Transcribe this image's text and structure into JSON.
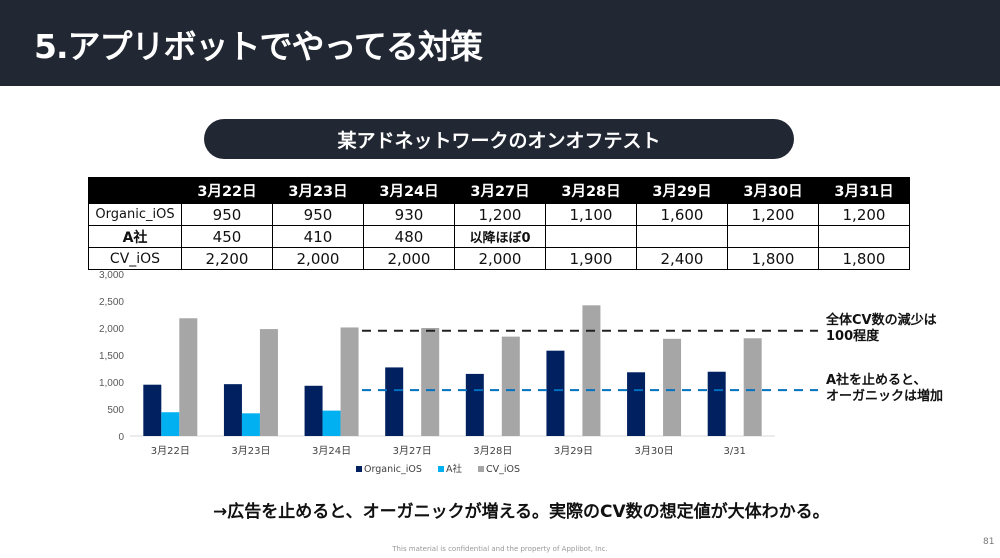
{
  "header": {
    "title": "5.アプリボットでやってる対策"
  },
  "section_pill": "某アドネットワークのオンオフテスト",
  "table": {
    "columns": [
      "",
      "3月22日",
      "3月23日",
      "3月24日",
      "3月27日",
      "3月28日",
      "3月29日",
      "3月30日",
      "3月31日"
    ],
    "rows": [
      {
        "label": "Organic_iOS",
        "cells": [
          "950",
          "950",
          "930",
          "1,200",
          "1,100",
          "1,600",
          "1,200",
          "1,200"
        ]
      },
      {
        "label": "A社",
        "cells": [
          "450",
          "410",
          "480",
          "以降ほぼ0",
          "",
          "",
          "",
          ""
        ]
      },
      {
        "label": "CV_iOS",
        "cells": [
          "2,200",
          "2,000",
          "2,000",
          "2,000",
          "1,900",
          "2,400",
          "1,800",
          "1,800"
        ]
      }
    ]
  },
  "chart_data": {
    "type": "bar",
    "categories": [
      "3月22日",
      "3月23日",
      "3月24日",
      "3月27日",
      "3月28日",
      "3月29日",
      "3月30日",
      "3/31"
    ],
    "series": [
      {
        "name": "Organic_iOS",
        "color": "#002060",
        "values": [
          950,
          960,
          930,
          1270,
          1150,
          1580,
          1180,
          1190
        ]
      },
      {
        "name": "A社",
        "color": "#00b0f0",
        "values": [
          440,
          420,
          470,
          null,
          null,
          null,
          null,
          null
        ]
      },
      {
        "name": "CV_iOS",
        "color": "#a6a6a6",
        "values": [
          2180,
          1980,
          2010,
          2000,
          1840,
          2420,
          1800,
          1810
        ]
      }
    ],
    "yticks": [
      "0",
      "500",
      "1,000",
      "1,500",
      "2,000",
      "2,500",
      "3,000"
    ],
    "ylim": [
      0,
      3000
    ],
    "reference_lines": [
      {
        "name": "total-cv-line",
        "value": 1950,
        "color": "#222222",
        "label": [
          "全体CV数の減少は",
          "100程度"
        ]
      },
      {
        "name": "organic-increase-line",
        "value": 850,
        "color": "#0070c0",
        "label": [
          "A社を止めると、",
          "オーガニックは増加"
        ]
      }
    ],
    "legend": "bottom",
    "grid": false,
    "title": "",
    "xlabel": "",
    "ylabel": ""
  },
  "conclusion": "→広告を止めると、オーガニックが増える。実際のCV数の想定値が大体わかる。",
  "footer": "This material is confidential and the property of Applibot, Inc.",
  "page_number": "81"
}
